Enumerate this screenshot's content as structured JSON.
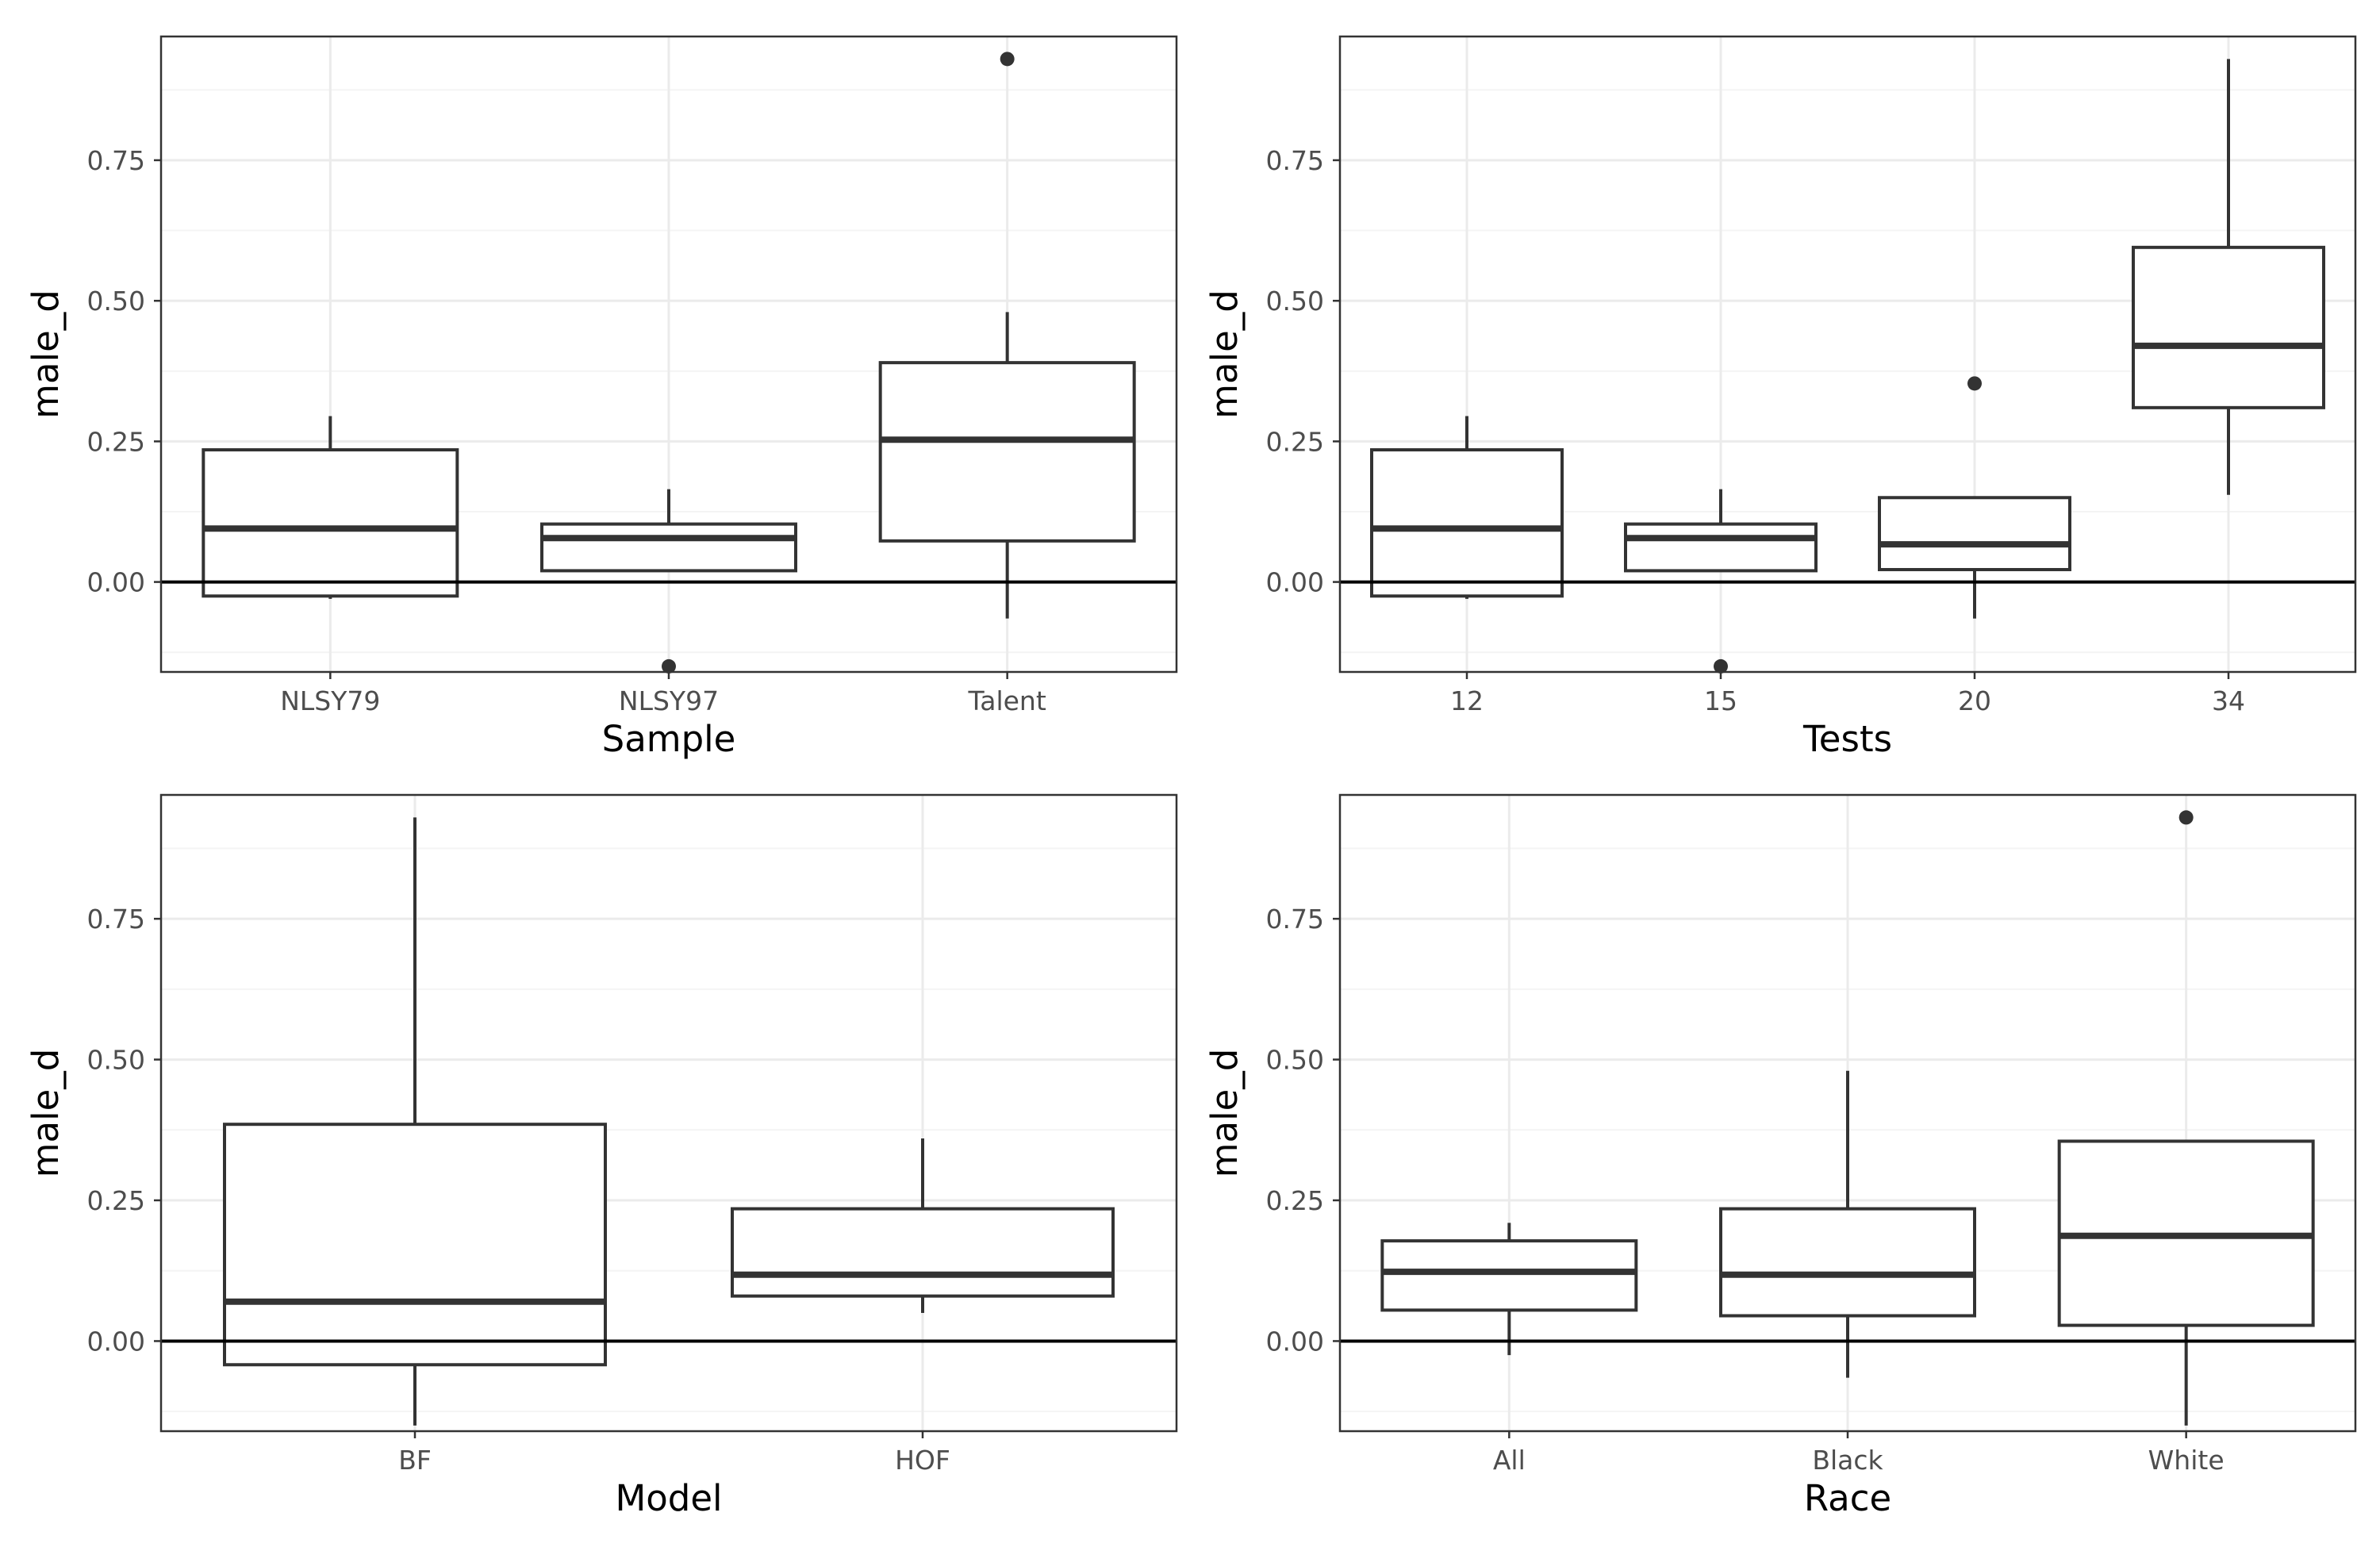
{
  "chart_data": [
    {
      "type": "box",
      "xlabel": "Sample",
      "ylabel": "male_d",
      "ylim": [
        -0.16,
        0.97
      ],
      "yticks": [
        0.0,
        0.25,
        0.5,
        0.75
      ],
      "ytick_labels": [
        "0.00",
        "0.25",
        "0.50",
        "0.75"
      ],
      "reference_line_y": 0,
      "grid": true,
      "categories": [
        "NLSY79",
        "NLSY97",
        "Talent"
      ],
      "boxes": [
        {
          "category": "NLSY79",
          "whisker_low": -0.03,
          "q1": -0.025,
          "median": 0.095,
          "q3": 0.235,
          "whisker_high": 0.295,
          "outliers": []
        },
        {
          "category": "NLSY97",
          "whisker_low": 0.02,
          "q1": 0.02,
          "median": 0.078,
          "q3": 0.103,
          "whisker_high": 0.165,
          "outliers": [
            -0.15
          ]
        },
        {
          "category": "Talent",
          "whisker_low": -0.065,
          "q1": 0.073,
          "median": 0.253,
          "q3": 0.39,
          "whisker_high": 0.48,
          "outliers": [
            0.93
          ]
        }
      ]
    },
    {
      "type": "box",
      "xlabel": "Tests",
      "ylabel": "male_d",
      "ylim": [
        -0.16,
        0.97
      ],
      "yticks": [
        0.0,
        0.25,
        0.5,
        0.75
      ],
      "ytick_labels": [
        "0.00",
        "0.25",
        "0.50",
        "0.75"
      ],
      "reference_line_y": 0,
      "grid": true,
      "categories": [
        "12",
        "15",
        "20",
        "34"
      ],
      "boxes": [
        {
          "category": "12",
          "whisker_low": -0.03,
          "q1": -0.025,
          "median": 0.095,
          "q3": 0.235,
          "whisker_high": 0.295,
          "outliers": []
        },
        {
          "category": "15",
          "whisker_low": 0.02,
          "q1": 0.02,
          "median": 0.078,
          "q3": 0.103,
          "whisker_high": 0.165,
          "outliers": [
            -0.15
          ]
        },
        {
          "category": "20",
          "whisker_low": -0.065,
          "q1": 0.022,
          "median": 0.067,
          "q3": 0.15,
          "whisker_high": 0.15,
          "outliers": [
            0.353
          ]
        },
        {
          "category": "34",
          "whisker_low": 0.155,
          "q1": 0.31,
          "median": 0.42,
          "q3": 0.595,
          "whisker_high": 0.93,
          "outliers": []
        }
      ]
    },
    {
      "type": "box",
      "xlabel": "Model",
      "ylabel": "male_d",
      "ylim": [
        -0.16,
        0.97
      ],
      "yticks": [
        0.0,
        0.25,
        0.5,
        0.75
      ],
      "ytick_labels": [
        "0.00",
        "0.25",
        "0.50",
        "0.75"
      ],
      "reference_line_y": 0,
      "grid": true,
      "categories": [
        "BF",
        "HOF"
      ],
      "boxes": [
        {
          "category": "BF",
          "whisker_low": -0.15,
          "q1": -0.042,
          "median": 0.07,
          "q3": 0.385,
          "whisker_high": 0.93,
          "outliers": []
        },
        {
          "category": "HOF",
          "whisker_low": 0.05,
          "q1": 0.08,
          "median": 0.118,
          "q3": 0.235,
          "whisker_high": 0.36,
          "outliers": []
        }
      ]
    },
    {
      "type": "box",
      "xlabel": "Race",
      "ylabel": "male_d",
      "ylim": [
        -0.16,
        0.97
      ],
      "yticks": [
        0.0,
        0.25,
        0.5,
        0.75
      ],
      "ytick_labels": [
        "0.00",
        "0.25",
        "0.50",
        "0.75"
      ],
      "reference_line_y": 0,
      "grid": true,
      "categories": [
        "All",
        "Black",
        "White"
      ],
      "boxes": [
        {
          "category": "All",
          "whisker_low": -0.025,
          "q1": 0.055,
          "median": 0.123,
          "q3": 0.178,
          "whisker_high": 0.21,
          "outliers": []
        },
        {
          "category": "Black",
          "whisker_low": -0.065,
          "q1": 0.045,
          "median": 0.118,
          "q3": 0.235,
          "whisker_high": 0.48,
          "outliers": []
        },
        {
          "category": "White",
          "whisker_low": -0.15,
          "q1": 0.028,
          "median": 0.187,
          "q3": 0.355,
          "whisker_high": 0.355,
          "outliers": [
            0.93
          ]
        }
      ]
    }
  ],
  "colors": {
    "box_stroke": "#333333",
    "panel_border": "#333333",
    "grid_major": "#ebebeb",
    "grid_minor": "#f4f4f4",
    "reference_line": "#000000",
    "tick_label": "#4d4d4d",
    "axis_title": "#000000"
  }
}
